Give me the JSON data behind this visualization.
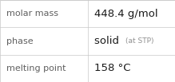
{
  "rows": [
    {
      "label": "molar mass",
      "value": "448.4 g/mol",
      "value_suffix": null
    },
    {
      "label": "phase",
      "value": "solid",
      "value_suffix": "(at STP)"
    },
    {
      "label": "melting point",
      "value": "158 °C",
      "value_suffix": null
    }
  ],
  "col_split": 0.5,
  "background_color": "#ffffff",
  "border_color": "#c8c8c8",
  "label_color": "#606060",
  "value_color": "#1a1a1a",
  "suffix_color": "#909090",
  "label_fontsize": 8.0,
  "value_fontsize": 9.5,
  "suffix_fontsize": 6.5,
  "font_family": "DejaVu Sans"
}
